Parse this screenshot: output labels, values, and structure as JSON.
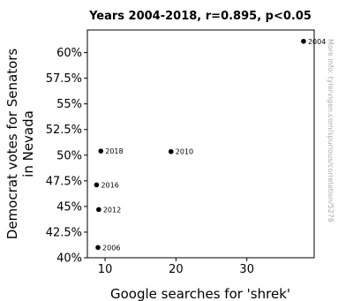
{
  "chart_data": {
    "type": "scatter",
    "title": "Years 2004-2018, r=0.895, p<0.05",
    "xlabel": "Google searches for 'shrek'",
    "ylabel": "Democrat votes for Senators in Nevada",
    "xlim": [
      7.5,
      39.5
    ],
    "ylim": [
      40,
      62.2
    ],
    "xticks": [
      10,
      20,
      30
    ],
    "xtick_labels": [
      "10",
      "20",
      "30"
    ],
    "yticks": [
      40,
      42.5,
      45,
      47.5,
      50,
      52.5,
      55,
      57.5,
      60
    ],
    "ytick_labels": [
      "40%",
      "42.5%",
      "45%",
      "47.5%",
      "50%",
      "52.5%",
      "55%",
      "57.5%",
      "60%"
    ],
    "grid": false,
    "points": [
      {
        "label": "2004",
        "x": 38,
        "y": 61.1
      },
      {
        "label": "2006",
        "x": 9.0,
        "y": 41.0
      },
      {
        "label": "2010",
        "x": 19.3,
        "y": 50.35
      },
      {
        "label": "2012",
        "x": 9.1,
        "y": 44.7
      },
      {
        "label": "2016",
        "x": 8.8,
        "y": 47.1
      },
      {
        "label": "2018",
        "x": 9.4,
        "y": 50.4
      }
    ],
    "marker_color": "#000000"
  },
  "watermark": "More info: tylervigen.com/spurious/correlation/5278"
}
